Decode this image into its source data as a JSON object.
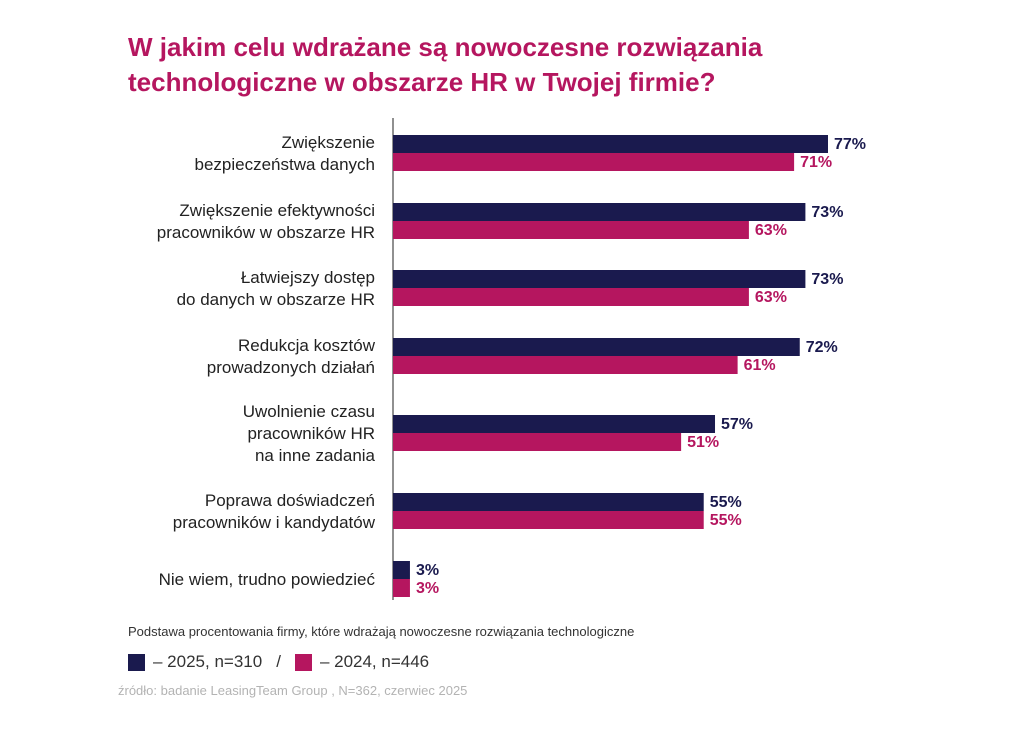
{
  "title": "W jakim celu wdrażane są nowoczesne rozwiązania technologiczne w obszarze HR w Twojej firmie?",
  "basis_note": "Podstawa procentowania  firmy, które wdrażają nowoczesne rozwiązania technologiczne",
  "legend": {
    "separator": "/",
    "items": [
      {
        "label": "– 2025, n=310",
        "color": "#1a1a4e"
      },
      {
        "label": "– 2024, n=446",
        "color": "#b5165f"
      }
    ]
  },
  "source": "źródło: badanie LeasingTeam Group , N=362, czerwiec 2025",
  "chart_data": {
    "type": "bar",
    "orientation": "horizontal",
    "title": "W jakim celu wdrażane są nowoczesne rozwiązania technologiczne w obszarze HR w Twojej firmie?",
    "value_suffix": "%",
    "xlim": [
      0,
      100
    ],
    "grid": false,
    "legend_position": "bottom-left",
    "categories": [
      [
        "Zwiększenie",
        "bezpieczeństwa danych"
      ],
      [
        "Zwiększenie efektywności",
        "pracowników w obszarze HR"
      ],
      [
        "Łatwiejszy dostęp",
        "do danych w obszarze HR"
      ],
      [
        "Redukcja kosztów",
        "prowadzonych działań"
      ],
      [
        "Uwolnienie czasu",
        "pracowników HR",
        "na inne zadania"
      ],
      [
        "Poprawa doświadczeń",
        "pracowników i kandydatów"
      ],
      [
        "Nie wiem, trudno powiedzieć"
      ]
    ],
    "series": [
      {
        "name": "2025, n=310",
        "color": "#1a1a4e",
        "values": [
          77,
          73,
          73,
          72,
          57,
          55,
          3
        ]
      },
      {
        "name": "2024, n=446",
        "color": "#b5165f",
        "values": [
          71,
          63,
          63,
          61,
          51,
          55,
          3
        ]
      }
    ]
  }
}
